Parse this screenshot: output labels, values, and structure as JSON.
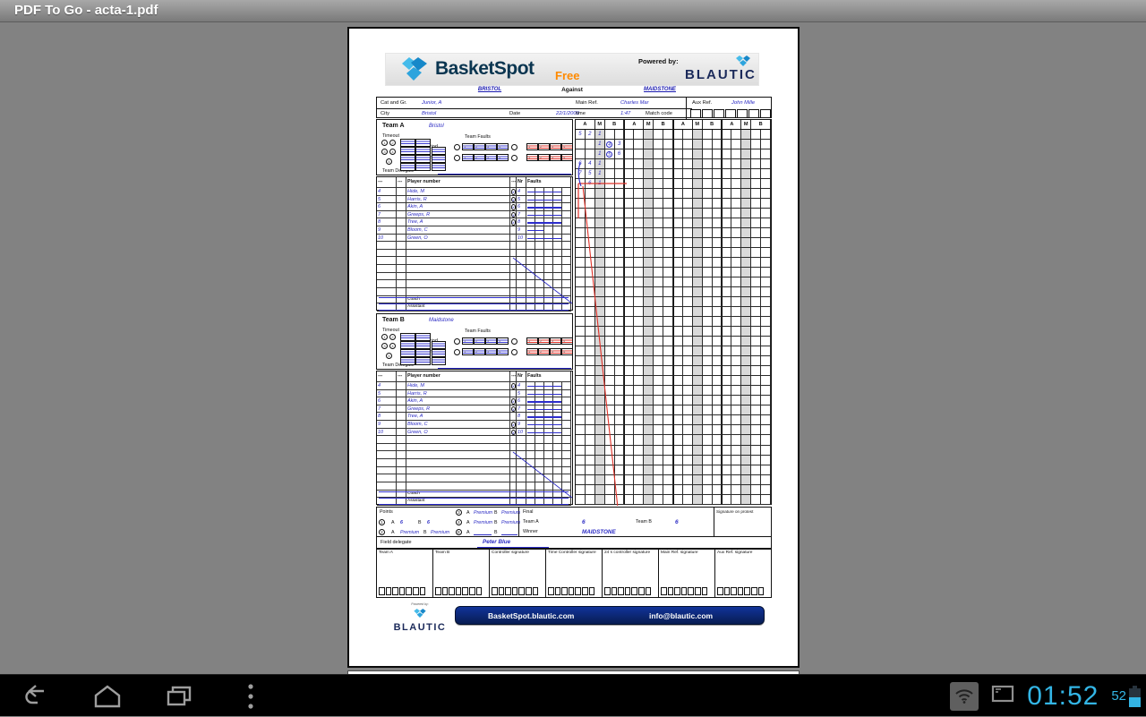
{
  "app": {
    "title": "PDF To Go - acta-1.pdf"
  },
  "system": {
    "time": "01:52",
    "battery_percent": "52"
  },
  "doc": {
    "brand": {
      "name": "BasketSpot",
      "edition": "Free",
      "powered_by_label": "Powered by:",
      "powered_by_brand": "BLAUTIC"
    },
    "matchup": {
      "home": "BRISTOL",
      "versus_label": "Against",
      "away": "MAIDSTONE"
    },
    "info": {
      "cat_label": "Cat and Gr.",
      "cat_value": "Junior, A",
      "city_label": "City",
      "city_value": "Bristol",
      "date_label": "Date",
      "date_value": "22/1/2000",
      "main_ref_label": "Main Ref.",
      "main_ref_value": "Charles Mar",
      "time_label": "time",
      "time_value": "1:47",
      "match_code_label": "Match code",
      "aux_ref_label": "Aux Ref.",
      "aux_ref_value": "John Mille"
    },
    "labels": {
      "timeout": "Timeout",
      "period": "Period",
      "team_faults": "Team Faults",
      "team_delegate": "Team Delegate",
      "coach": "Coach",
      "assistant": "Assistant",
      "fault_numbers": [
        "1",
        "2",
        "3",
        "4"
      ],
      "timeout_numbers": [
        "1",
        "2",
        "3",
        "4",
        "5"
      ]
    },
    "table_headers": [
      "---",
      "---",
      "Player number",
      "---",
      "Nr",
      "Faults"
    ],
    "teams": [
      {
        "label": "Team A",
        "name": "Bristol",
        "players": [
          {
            "no": "4",
            "name": "Hide, M",
            "sub": true,
            "nr": "4",
            "fl": 4
          },
          {
            "no": "5",
            "name": "Harris, R",
            "sub": true,
            "nr": "5",
            "fl": 4
          },
          {
            "no": "6",
            "name": "Akin, A",
            "sub": true,
            "nr": "6",
            "fl": 4
          },
          {
            "no": "7",
            "name": "Greeps, R",
            "sub": true,
            "nr": "7",
            "fl": 4
          },
          {
            "no": "8",
            "name": "Tree, A",
            "sub": true,
            "nr": "8",
            "fl": 4
          },
          {
            "no": "9",
            "name": "Bloom, C",
            "sub": false,
            "nr": "9",
            "fl": 2
          },
          {
            "no": "10",
            "name": "Green, O",
            "sub": false,
            "nr": "10",
            "fl": 4
          }
        ]
      },
      {
        "label": "Team B",
        "name": "Maidstone",
        "players": [
          {
            "no": "4",
            "name": "Hide, M",
            "sub": true,
            "nr": "4",
            "fl": 4
          },
          {
            "no": "5",
            "name": "Harris, R",
            "sub": false,
            "nr": "5",
            "fl": 4
          },
          {
            "no": "6",
            "name": "Akin, A",
            "sub": true,
            "nr": "6",
            "fl": 4
          },
          {
            "no": "7",
            "name": "Greeps, R",
            "sub": true,
            "nr": "7",
            "fl": 4
          },
          {
            "no": "8",
            "name": "Tree, A",
            "sub": false,
            "nr": "8",
            "fl": 4
          },
          {
            "no": "9",
            "name": "Bloom, C",
            "sub": true,
            "nr": "9",
            "fl": 4
          },
          {
            "no": "10",
            "name": "Green, O",
            "sub": true,
            "nr": "10",
            "fl": 4
          }
        ]
      }
    ],
    "grid": {
      "col_groups": [
        "A",
        "M",
        "B"
      ],
      "group_count": 4,
      "rows": 38,
      "entries": [
        {
          "r": 0,
          "c": 0,
          "v": "5"
        },
        {
          "r": 0,
          "c": 1,
          "v": "2"
        },
        {
          "r": 0,
          "c": 2,
          "v": "1"
        },
        {
          "r": 1,
          "c": 2,
          "v": "1"
        },
        {
          "r": 1,
          "c": 3,
          "v": "4",
          "circ": true
        },
        {
          "r": 1,
          "c": 4,
          "v": "3"
        },
        {
          "r": 2,
          "c": 2,
          "v": "1"
        },
        {
          "r": 2,
          "c": 3,
          "v": "5",
          "circ": true
        },
        {
          "r": 2,
          "c": 4,
          "v": "6"
        },
        {
          "r": 3,
          "c": 0,
          "v": "6"
        },
        {
          "r": 3,
          "c": 1,
          "v": "4"
        },
        {
          "r": 3,
          "c": 2,
          "v": "1"
        },
        {
          "r": 4,
          "c": 0,
          "v": "7"
        },
        {
          "r": 4,
          "c": 1,
          "v": "5"
        },
        {
          "r": 4,
          "c": 2,
          "v": "1"
        },
        {
          "r": 5,
          "c": 1,
          "v": "6"
        },
        {
          "r": 5,
          "c": 2,
          "v": "1"
        }
      ]
    },
    "points": {
      "label": "Points",
      "a": "A",
      "b": "B",
      "p1": "1",
      "p1_a": "6",
      "p1_b": "6",
      "p2": "2",
      "p2_a": "Premium",
      "p2_b": "Premium",
      "p3": "3",
      "p3_a": "Premium",
      "p3_b": "Premium",
      "p4": "4",
      "p4_a": "Premium",
      "p4_b": "Premium",
      "pe": "E"
    },
    "final": {
      "label": "Final",
      "team_a_label": "Team A",
      "team_a_score": "6",
      "team_b_label": "Team B",
      "team_b_score": "6",
      "winner_label": "Winner",
      "winner": "MAIDSTONE"
    },
    "protest_label": "Signature on protest",
    "field_delegate": {
      "label": "Field delegate",
      "value": "Peter Blue"
    },
    "signatures": [
      "Team A",
      "Team B",
      "Controller signature",
      "Time Controller signature",
      "24 s controller signature",
      "Main Ref. signature",
      "Aux Ref. signature"
    ],
    "footer": {
      "powered_by": "Powered by:",
      "brand": "BLAUTIC",
      "site": "BasketSpot.blautic.com",
      "email": "info@blautic.com"
    }
  }
}
